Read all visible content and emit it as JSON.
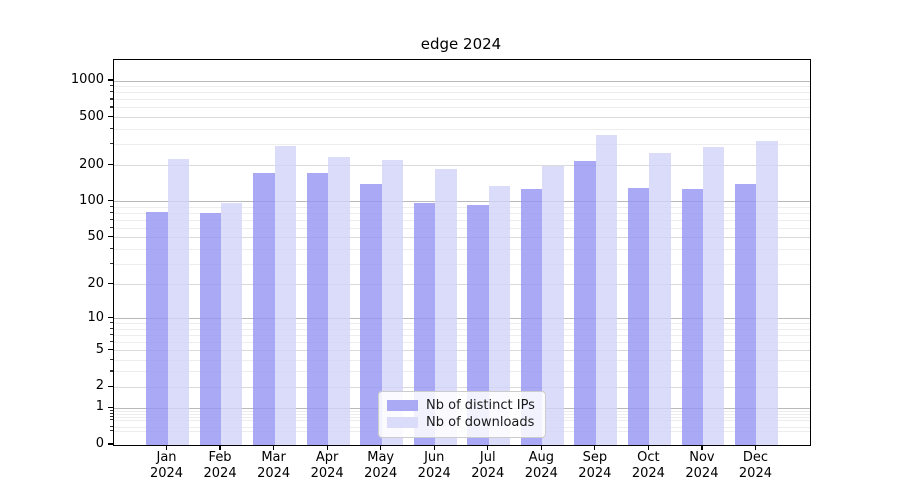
{
  "title": "edge 2024",
  "chart_data": {
    "type": "bar",
    "title": "edge 2024",
    "categories": [
      "Jan",
      "Feb",
      "Mar",
      "Apr",
      "May",
      "Jun",
      "Jul",
      "Aug",
      "Sep",
      "Oct",
      "Nov",
      "Dec"
    ],
    "category_year": "2024",
    "series": [
      {
        "name": "Nb of distinct IPs",
        "color": "rgba(148,148,242,0.8)",
        "legend_color": "#a9a9f4",
        "values": [
          83,
          81,
          175,
          173,
          140,
          97,
          95,
          127,
          220,
          131,
          129,
          141
        ]
      },
      {
        "name": "Nb of downloads",
        "color": "rgba(210,210,249,0.8)",
        "legend_color": "#dbdbfa",
        "values": [
          225,
          98,
          290,
          236,
          223,
          188,
          135,
          198,
          360,
          255,
          285,
          320
        ]
      }
    ],
    "y_axis": {
      "scale": "log10(1+x)",
      "ticks": [
        {
          "value": 1000,
          "label": "1000",
          "tier": "major"
        },
        {
          "value": 500,
          "label": "500",
          "tier": "mid"
        },
        {
          "value": 200,
          "label": "200",
          "tier": "mid"
        },
        {
          "value": 100,
          "label": "100",
          "tier": "major"
        },
        {
          "value": 50,
          "label": "50",
          "tier": "mid"
        },
        {
          "value": 20,
          "label": "20",
          "tier": "mid"
        },
        {
          "value": 10,
          "label": "10",
          "tier": "major"
        },
        {
          "value": 5,
          "label": "5",
          "tier": "mid"
        },
        {
          "value": 2,
          "label": "2",
          "tier": "mid"
        },
        {
          "value": 1,
          "label": "1",
          "tier": "major"
        },
        {
          "value": 0,
          "label": "0",
          "tier": "axis"
        }
      ],
      "minor_values": [
        0.3,
        0.4,
        0.6,
        0.7,
        0.8,
        0.9,
        3,
        4,
        6,
        7,
        8,
        9,
        30,
        40,
        60,
        70,
        80,
        90,
        300,
        400,
        600,
        700,
        800,
        900
      ],
      "top_value": 1490
    },
    "x_axis": {
      "range": [
        -1,
        12
      ],
      "bar_width_data_units": 0.4
    },
    "legend": {
      "position": "lower-center"
    },
    "grid": true,
    "colors": {
      "grid_major": "#b9b9b9",
      "grid_mid": "#dadada",
      "grid_minor": "#ededed",
      "spine": "#000000"
    }
  }
}
